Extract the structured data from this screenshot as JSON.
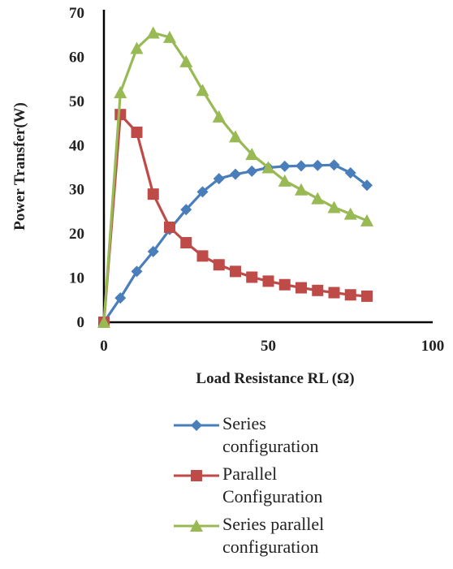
{
  "chart_data": {
    "type": "line",
    "xlabel": "Load Resistance RL (Ω)",
    "ylabel": "Power Transfer(W)",
    "xlim": [
      0,
      100
    ],
    "ylim": [
      0,
      70
    ],
    "x_ticks": [
      "0",
      "50",
      "100"
    ],
    "y_ticks": [
      "0",
      "10",
      "20",
      "30",
      "40",
      "50",
      "60",
      "70"
    ],
    "grid": false,
    "legend_position": "bottom",
    "x": [
      0,
      5,
      10,
      15,
      20,
      25,
      30,
      35,
      40,
      45,
      50,
      55,
      60,
      65,
      70,
      75,
      80
    ],
    "series": [
      {
        "name": "Series configuration",
        "name_lines": [
          "Series",
          "configuration"
        ],
        "color": "#4a7ebb",
        "marker": "diamond",
        "values": [
          0,
          5.5,
          11.5,
          16,
          21,
          25.5,
          29.5,
          32.5,
          33.5,
          34.2,
          35,
          35.3,
          35.4,
          35.5,
          35.6,
          33.8,
          31
        ]
      },
      {
        "name": "Parallel Configuration",
        "name_lines": [
          "Parallel",
          "Configuration"
        ],
        "color": "#be4b48",
        "marker": "square",
        "values": [
          0,
          47,
          43,
          29,
          21.5,
          18,
          15,
          13,
          11.5,
          10.2,
          9.3,
          8.5,
          7.8,
          7.2,
          6.7,
          6.2,
          5.9
        ]
      },
      {
        "name": "Series parallel configuration",
        "name_lines": [
          "Series parallel",
          "configuration"
        ],
        "color": "#98b954",
        "marker": "triangle",
        "values": [
          0,
          52,
          62,
          65.5,
          64.5,
          59,
          52.5,
          46.5,
          42,
          38,
          35,
          32,
          30,
          28,
          26,
          24.5,
          23
        ]
      }
    ]
  }
}
